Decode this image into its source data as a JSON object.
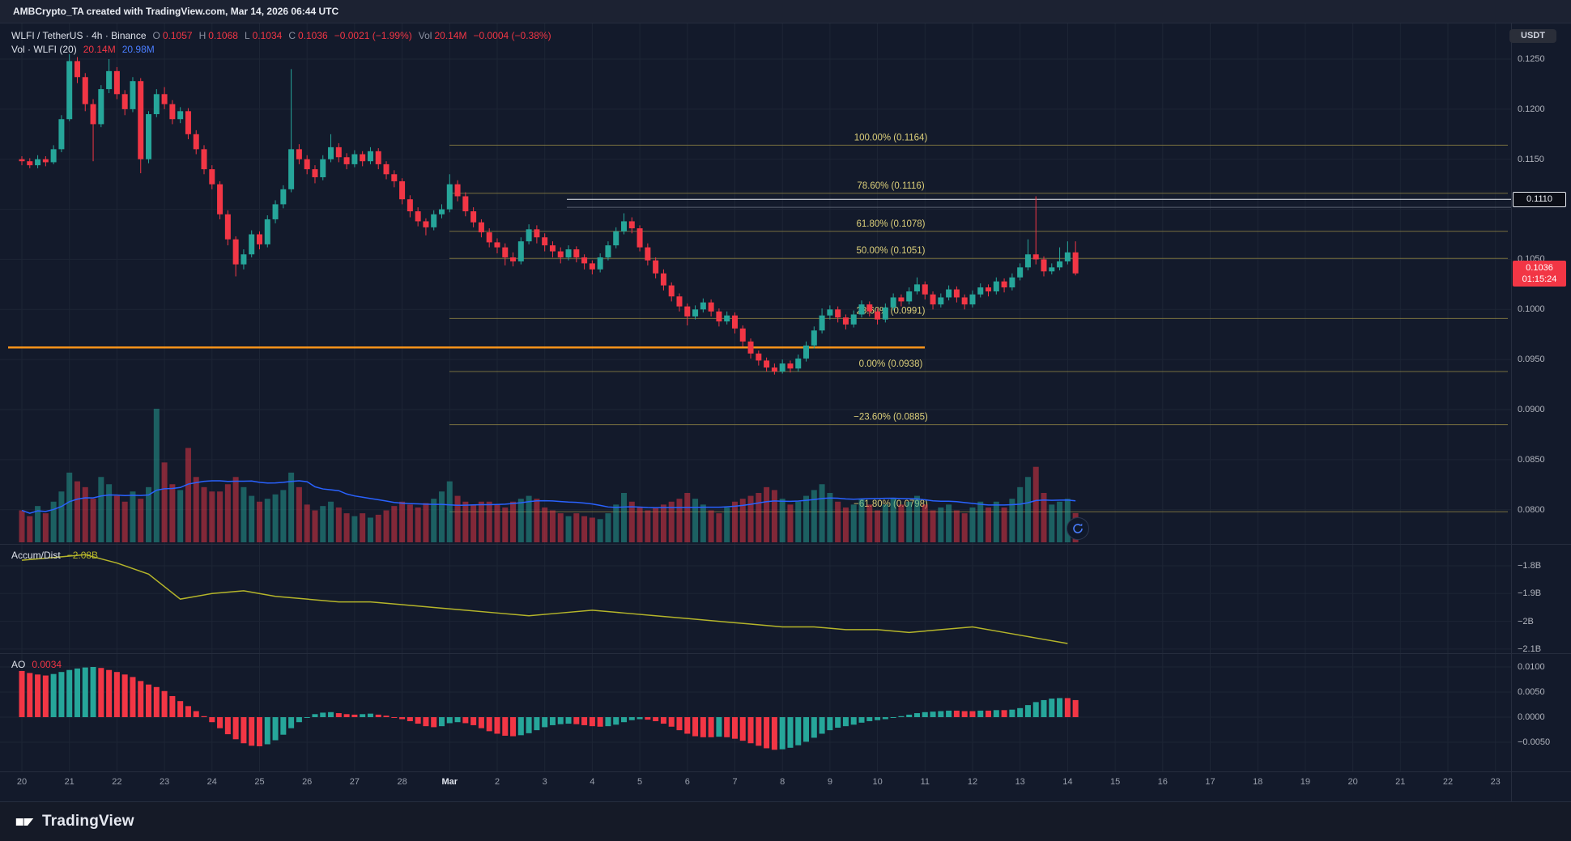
{
  "header": {
    "title": "AMBCrypto_TA created with TradingView.com, Mar 14, 2026 06:44 UTC"
  },
  "legend": {
    "symbol": "WLFI / TetherUS · 4h · Binance",
    "o_label": "O",
    "o_value": "0.1057",
    "h_label": "H",
    "h_value": "0.1068",
    "l_label": "L",
    "l_value": "0.1034",
    "c_label": "C",
    "c_value": "0.1036",
    "change": "−0.0021 (−1.99%)",
    "vol_label": "Vol",
    "vol_value": "20.14M",
    "vol_change": "−0.0004 (−0.38%)"
  },
  "volume_legend": {
    "label": "Vol · WLFI (20)",
    "value": "20.14M",
    "ma_value": "20.98M"
  },
  "indicators": {
    "ad_label": "Accum/Dist",
    "ad_value": "−2.08B",
    "ao_label": "AO",
    "ao_value": "0.0034"
  },
  "price_scale": {
    "currency": "USDT",
    "labels": [
      "0.1250",
      "0.1200",
      "0.1150",
      "0.1050",
      "0.1000",
      "0.0950",
      "0.0900",
      "0.0850",
      "0.0800"
    ],
    "high_badge": "0.1110",
    "last_badge": {
      "price": "0.1036",
      "countdown": "01:15:24"
    }
  },
  "ad_axis": [
    {
      "text": "−1.8B",
      "value": -1.8
    },
    {
      "text": "−1.9B",
      "value": -1.9
    },
    {
      "text": "−2B",
      "value": -2.0
    },
    {
      "text": "−2.1B",
      "value": -2.1
    }
  ],
  "ao_axis": [
    {
      "text": "0.0100",
      "value": 100
    },
    {
      "text": "0.0050",
      "value": 50
    },
    {
      "text": "0.0000",
      "value": 0
    },
    {
      "text": "−0.0050",
      "value": -50
    }
  ],
  "time_axis": {
    "labels": [
      "20",
      "21",
      "22",
      "23",
      "24",
      "25",
      "26",
      "27",
      "28",
      "Mar",
      "2",
      "3",
      "4",
      "5",
      "6",
      "7",
      "8",
      "9",
      "10",
      "11",
      "12",
      "13",
      "14",
      "15",
      "16",
      "17",
      "18",
      "19",
      "20",
      "21",
      "22",
      "23"
    ],
    "major_index": 9
  },
  "footer": {
    "logo_text": "TradingView"
  },
  "colors": {
    "up": "#26a69a",
    "down": "#f23645",
    "vol_up": "rgba(38,166,154,0.5)",
    "vol_down": "rgba(242,54,69,0.5)",
    "volume_ma": "#2962ff",
    "fib_line": "#8f8444",
    "fib_text": "#ddd07a",
    "white_line": "#e8ecf4",
    "gray_line": "#5a6170",
    "orange_line": "#f7931a",
    "accum_dist": "#b5b52a",
    "grid": "#1d2535",
    "separator": "#262d3e",
    "background": "#131a2b"
  },
  "chart_data": [
    {
      "type": "candlestick",
      "title": "WLFI / TetherUS · 4h · Binance",
      "interval": "4h",
      "candles_per_day": 6,
      "price_scale_factor": 10000,
      "ohlc_last": {
        "open": 0.1057,
        "high": 0.1068,
        "low": 0.1034,
        "close": 0.1036,
        "change": "−0.0021 (−1.99%)"
      },
      "ylim": [
        0.078,
        0.1285
      ],
      "fib_levels": [
        {
          "label": "100.00% (0.1164)",
          "price": 0.1164
        },
        {
          "label": "78.60% (0.1116)",
          "price": 0.1116
        },
        {
          "label": "61.80% (0.1078)",
          "price": 0.1078
        },
        {
          "label": "50.00% (0.1051)",
          "price": 0.1051
        },
        {
          "label": "23.60% (0.0991)",
          "price": 0.0991
        },
        {
          "label": "0.00% (0.0938)",
          "price": 0.0938
        },
        {
          "label": "−23.60% (0.0885)",
          "price": 0.0885
        },
        {
          "label": "−61.80% (0.0798)",
          "price": 0.0798
        }
      ],
      "extra_lines": {
        "white_price": 0.111,
        "gray_price": 0.1102,
        "orange_support": 0.0962
      },
      "volume_ma_period": 20,
      "candles": [
        [
          1150,
          1153,
          1144,
          1148
        ],
        [
          1148,
          1151,
          1141,
          1144
        ],
        [
          1144,
          1154,
          1141,
          1150
        ],
        [
          1150,
          1153,
          1143,
          1147
        ],
        [
          1147,
          1164,
          1145,
          1160
        ],
        [
          1160,
          1194,
          1157,
          1190
        ],
        [
          1190,
          1255,
          1188,
          1248
        ],
        [
          1248,
          1252,
          1226,
          1232
        ],
        [
          1232,
          1236,
          1198,
          1205
        ],
        [
          1205,
          1210,
          1148,
          1185
        ],
        [
          1185,
          1224,
          1182,
          1220
        ],
        [
          1220,
          1250,
          1216,
          1238
        ],
        [
          1238,
          1242,
          1210,
          1215
        ],
        [
          1215,
          1219,
          1194,
          1200
        ],
        [
          1200,
          1232,
          1197,
          1228
        ],
        [
          1228,
          1231,
          1136,
          1150
        ],
        [
          1150,
          1198,
          1146,
          1195
        ],
        [
          1195,
          1220,
          1192,
          1215
        ],
        [
          1215,
          1222,
          1200,
          1205
        ],
        [
          1205,
          1209,
          1185,
          1190
        ],
        [
          1190,
          1202,
          1186,
          1198
        ],
        [
          1198,
          1201,
          1170,
          1175
        ],
        [
          1175,
          1179,
          1155,
          1160
        ],
        [
          1160,
          1164,
          1135,
          1140
        ],
        [
          1140,
          1144,
          1120,
          1125
        ],
        [
          1125,
          1128,
          1090,
          1095
        ],
        [
          1095,
          1099,
          1064,
          1070
        ],
        [
          1070,
          1073,
          1033,
          1045
        ],
        [
          1045,
          1060,
          1040,
          1055
        ],
        [
          1055,
          1079,
          1052,
          1075
        ],
        [
          1075,
          1078,
          1060,
          1065
        ],
        [
          1065,
          1094,
          1062,
          1090
        ],
        [
          1090,
          1109,
          1086,
          1105
        ],
        [
          1105,
          1124,
          1101,
          1120
        ],
        [
          1120,
          1240,
          1117,
          1160
        ],
        [
          1160,
          1165,
          1145,
          1150
        ],
        [
          1150,
          1154,
          1135,
          1140
        ],
        [
          1140,
          1144,
          1126,
          1132
        ],
        [
          1132,
          1154,
          1129,
          1150
        ],
        [
          1150,
          1175,
          1147,
          1162
        ],
        [
          1162,
          1166,
          1147,
          1152
        ],
        [
          1152,
          1156,
          1140,
          1145
        ],
        [
          1145,
          1159,
          1142,
          1155
        ],
        [
          1155,
          1158,
          1143,
          1148
        ],
        [
          1148,
          1162,
          1145,
          1158
        ],
        [
          1158,
          1161,
          1140,
          1145
        ],
        [
          1145,
          1148,
          1130,
          1135
        ],
        [
          1135,
          1139,
          1122,
          1128
        ],
        [
          1128,
          1131,
          1105,
          1110
        ],
        [
          1110,
          1114,
          1092,
          1098
        ],
        [
          1098,
          1102,
          1083,
          1088
        ],
        [
          1088,
          1091,
          1074,
          1082
        ],
        [
          1082,
          1099,
          1079,
          1095
        ],
        [
          1095,
          1105,
          1091,
          1100
        ],
        [
          1100,
          1135,
          1097,
          1125
        ],
        [
          1125,
          1129,
          1108,
          1113
        ],
        [
          1113,
          1117,
          1093,
          1098
        ],
        [
          1098,
          1102,
          1082,
          1087
        ],
        [
          1087,
          1090,
          1072,
          1077
        ],
        [
          1077,
          1081,
          1062,
          1067
        ],
        [
          1067,
          1071,
          1056,
          1062
        ],
        [
          1062,
          1066,
          1044,
          1052
        ],
        [
          1052,
          1057,
          1043,
          1048
        ],
        [
          1048,
          1072,
          1045,
          1068
        ],
        [
          1068,
          1085,
          1065,
          1080
        ],
        [
          1080,
          1084,
          1066,
          1072
        ],
        [
          1072,
          1076,
          1058,
          1064
        ],
        [
          1064,
          1068,
          1052,
          1058
        ],
        [
          1058,
          1062,
          1046,
          1052
        ],
        [
          1052,
          1064,
          1049,
          1060
        ],
        [
          1060,
          1063,
          1047,
          1052
        ],
        [
          1052,
          1055,
          1040,
          1046
        ],
        [
          1046,
          1049,
          1035,
          1040
        ],
        [
          1040,
          1056,
          1037,
          1052
        ],
        [
          1052,
          1068,
          1049,
          1064
        ],
        [
          1064,
          1082,
          1061,
          1078
        ],
        [
          1078,
          1096,
          1075,
          1088
        ],
        [
          1088,
          1092,
          1076,
          1081
        ],
        [
          1081,
          1084,
          1058,
          1062
        ],
        [
          1062,
          1066,
          1044,
          1049
        ],
        [
          1049,
          1052,
          1031,
          1036
        ],
        [
          1036,
          1040,
          1019,
          1024
        ],
        [
          1024,
          1027,
          1008,
          1013
        ],
        [
          1013,
          1016,
          998,
          1003
        ],
        [
          1003,
          1006,
          984,
          993
        ],
        [
          993,
          1004,
          990,
          1000
        ],
        [
          1000,
          1011,
          997,
          1007
        ],
        [
          1007,
          1010,
          993,
          998
        ],
        [
          998,
          1001,
          983,
          988
        ],
        [
          988,
          998,
          985,
          994
        ],
        [
          994,
          997,
          976,
          981
        ],
        [
          981,
          984,
          963,
          968
        ],
        [
          968,
          971,
          951,
          956
        ],
        [
          956,
          959,
          944,
          949
        ],
        [
          949,
          952,
          938,
          942
        ],
        [
          942,
          946,
          935,
          938
        ],
        [
          938,
          950,
          936,
          946
        ],
        [
          946,
          949,
          937,
          941
        ],
        [
          941,
          955,
          938,
          951
        ],
        [
          951,
          968,
          948,
          964
        ],
        [
          964,
          983,
          961,
          979
        ],
        [
          979,
          1001,
          976,
          994
        ],
        [
          994,
          1004,
          990,
          1000
        ],
        [
          1000,
          1003,
          987,
          992
        ],
        [
          992,
          995,
          980,
          985
        ],
        [
          985,
          999,
          982,
          995
        ],
        [
          995,
          1009,
          992,
          1005
        ],
        [
          1005,
          1008,
          993,
          998
        ],
        [
          998,
          1001,
          985,
          990
        ],
        [
          990,
          1006,
          987,
          1002
        ],
        [
          1002,
          1016,
          999,
          1012
        ],
        [
          1012,
          1015,
          1003,
          1008
        ],
        [
          1008,
          1022,
          1005,
          1018
        ],
        [
          1018,
          1032,
          1015,
          1025
        ],
        [
          1025,
          1028,
          1010,
          1015
        ],
        [
          1015,
          1018,
          1000,
          1005
        ],
        [
          1005,
          1016,
          1002,
          1012
        ],
        [
          1012,
          1024,
          1009,
          1020
        ],
        [
          1020,
          1023,
          1007,
          1012
        ],
        [
          1012,
          1015,
          1000,
          1005
        ],
        [
          1005,
          1019,
          1002,
          1015
        ],
        [
          1015,
          1026,
          1012,
          1022
        ],
        [
          1022,
          1025,
          1013,
          1018
        ],
        [
          1018,
          1032,
          1015,
          1028
        ],
        [
          1028,
          1031,
          1017,
          1022
        ],
        [
          1022,
          1036,
          1019,
          1032
        ],
        [
          1032,
          1046,
          1029,
          1042
        ],
        [
          1042,
          1070,
          1039,
          1055
        ],
        [
          1055,
          1113,
          1045,
          1050
        ],
        [
          1050,
          1053,
          1033,
          1038
        ],
        [
          1038,
          1046,
          1035,
          1042
        ],
        [
          1042,
          1062,
          1039,
          1048
        ],
        [
          1048,
          1068,
          1045,
          1057
        ],
        [
          1057,
          1068,
          1034,
          1036
        ]
      ],
      "volumes_m": [
        22,
        18,
        25,
        20,
        28,
        35,
        48,
        42,
        38,
        30,
        45,
        40,
        32,
        28,
        35,
        30,
        38,
        92,
        55,
        40,
        36,
        65,
        45,
        38,
        35,
        35,
        40,
        45,
        38,
        32,
        28,
        30,
        33,
        36,
        48,
        38,
        26,
        22,
        25,
        28,
        24,
        20,
        18,
        20,
        17,
        19,
        22,
        25,
        28,
        26,
        24,
        27,
        30,
        35,
        42,
        32,
        28,
        26,
        28,
        28,
        26,
        24,
        28,
        30,
        32,
        30,
        24,
        22,
        20,
        18,
        20,
        18,
        17,
        16,
        20,
        26,
        34,
        28,
        24,
        22,
        24,
        26,
        28,
        30,
        34,
        30,
        26,
        22,
        20,
        24,
        28,
        30,
        32,
        34,
        38,
        36,
        30,
        26,
        28,
        32,
        36,
        40,
        34,
        28,
        24,
        26,
        30,
        26,
        22,
        26,
        30,
        26,
        28,
        32,
        26,
        22,
        24,
        26,
        22,
        20,
        24,
        28,
        24,
        28,
        24,
        30,
        38,
        45,
        52,
        34,
        26,
        28,
        30,
        20.14
      ]
    },
    {
      "type": "line",
      "title": "Accum/Dist",
      "last_label": "−2.08B",
      "point_every_n_candles": 4,
      "ylim": [
        -2.115,
        -1.72
      ],
      "values_b": [
        -1.78,
        -1.77,
        -1.76,
        -1.79,
        -1.83,
        -1.92,
        -1.9,
        -1.89,
        -1.91,
        -1.92,
        -1.93,
        -1.93,
        -1.94,
        -1.95,
        -1.96,
        -1.97,
        -1.98,
        -1.97,
        -1.96,
        -1.97,
        -1.98,
        -1.99,
        -2.0,
        -2.01,
        -2.02,
        -2.02,
        -2.03,
        -2.03,
        -2.04,
        -2.03,
        -2.02,
        -2.04,
        -2.06,
        -2.08
      ]
    },
    {
      "type": "bar",
      "title": "AO",
      "last_label": "0.0034",
      "scale_factor": 10000,
      "ylim": [
        -0.0108,
        0.0128
      ],
      "values": [
        92,
        88,
        85,
        83,
        86,
        90,
        94,
        97,
        99,
        100,
        98,
        94,
        90,
        85,
        80,
        72,
        65,
        60,
        52,
        42,
        32,
        22,
        12,
        2,
        -10,
        -22,
        -34,
        -44,
        -52,
        -57,
        -58,
        -54,
        -46,
        -35,
        -22,
        -10,
        0,
        6,
        9,
        10,
        8,
        6,
        5,
        6,
        7,
        5,
        3,
        0,
        -4,
        -8,
        -13,
        -18,
        -20,
        -18,
        -12,
        -10,
        -12,
        -16,
        -22,
        -28,
        -33,
        -37,
        -38,
        -36,
        -32,
        -26,
        -20,
        -16,
        -14,
        -13,
        -14,
        -16,
        -18,
        -19,
        -18,
        -15,
        -10,
        -6,
        -4,
        -5,
        -8,
        -13,
        -19,
        -26,
        -33,
        -38,
        -40,
        -40,
        -39,
        -40,
        -43,
        -47,
        -52,
        -57,
        -62,
        -65,
        -64,
        -61,
        -56,
        -49,
        -41,
        -33,
        -26,
        -21,
        -18,
        -15,
        -11,
        -8,
        -6,
        -4,
        -1,
        2,
        5,
        8,
        10,
        11,
        12,
        13,
        13,
        12,
        12,
        13,
        13,
        14,
        14,
        15,
        18,
        24,
        30,
        34,
        37,
        38,
        38,
        34
      ]
    }
  ]
}
